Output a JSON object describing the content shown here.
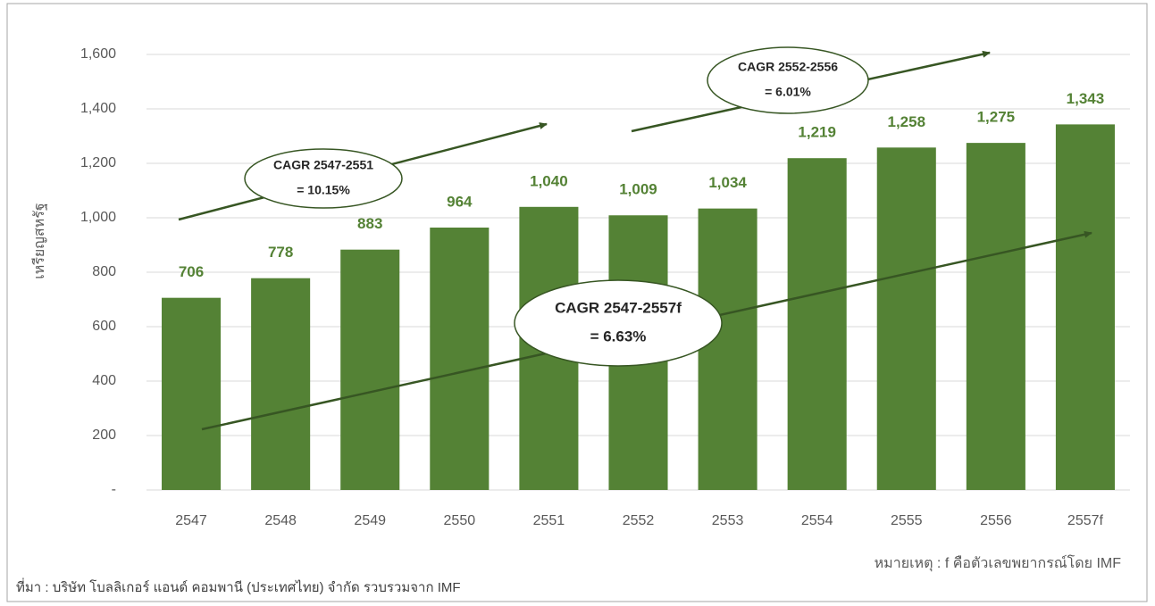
{
  "chart_data": {
    "type": "bar",
    "y_axis_label": "เหรียญสหรัฐ",
    "categories": [
      "2547",
      "2548",
      "2549",
      "2550",
      "2551",
      "2552",
      "2553",
      "2554",
      "2555",
      "2556",
      "2557f"
    ],
    "values": [
      706,
      778,
      883,
      964,
      1040,
      1009,
      1034,
      1219,
      1258,
      1275,
      1343
    ],
    "value_labels": [
      "706",
      "778",
      "883",
      "964",
      "1,040",
      "1,009",
      "1,034",
      "1,219",
      "1,258",
      "1,275",
      "1,343"
    ],
    "color": "#548235",
    "ylim": [
      0,
      1600
    ],
    "yticks": [
      {
        "value": 0,
        "label": "-"
      },
      200,
      400,
      600,
      800,
      {
        "value": 1000,
        "label": "1,000"
      },
      {
        "value": 1200,
        "label": "1,200"
      },
      {
        "value": 1400,
        "label": "1,400"
      },
      {
        "value": 1600,
        "label": "1,600"
      }
    ],
    "grid": true,
    "annotations": [
      {
        "lines": [
          "CAGR 2547-2551",
          "= 10.15%"
        ]
      },
      {
        "lines": [
          "CAGR 2552-2556",
          "= 6.01%"
        ]
      },
      {
        "lines": [
          "CAGR 2547-2557f",
          "= 6.63%"
        ]
      }
    ],
    "note": "หมายเหตุ : f คือตัวเลขพยากรณ์โดย IMF",
    "source": "ที่มา : บริษัท โบลลิเกอร์ แอนด์ คอมพานี (ประเทศไทย) จำกัด รวบรวมจาก IMF"
  }
}
